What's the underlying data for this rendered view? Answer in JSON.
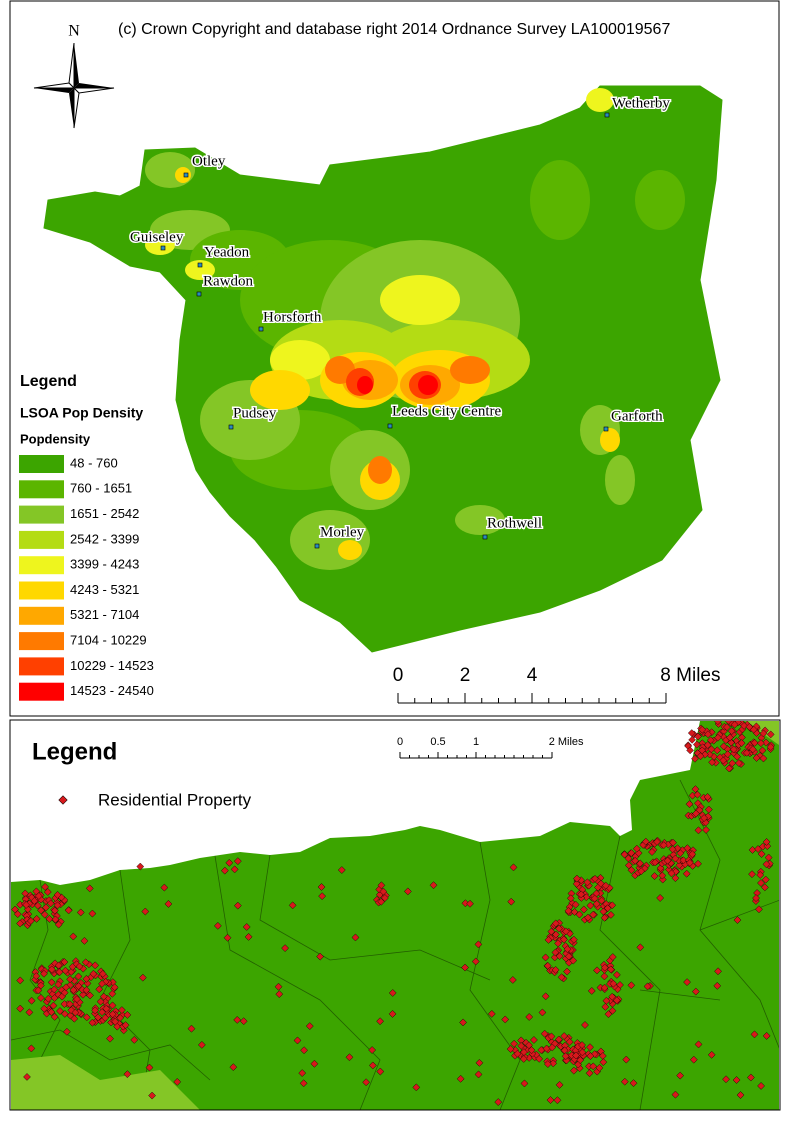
{
  "top_map": {
    "copyright": "(c) Crown Copyright and database right 2014 Ordnance Survey LA100019567",
    "north": "N",
    "places": [
      "Wetherby",
      "Otley",
      "Guiseley",
      "Yeadon",
      "Rawdon",
      "Horsforth",
      "Pudsey",
      "Leeds City Centre",
      "Garforth",
      "Rothwell",
      "Morley"
    ],
    "legend": {
      "title": "Legend",
      "layer": "LSOA Pop Density",
      "field": "Popdensity",
      "classes": [
        {
          "label": "48 - 760",
          "color": "#3ca500"
        },
        {
          "label": "760 - 1651",
          "color": "#5bb500"
        },
        {
          "label": "1651 - 2542",
          "color": "#84c626"
        },
        {
          "label": "2542 - 3399",
          "color": "#b4dc14"
        },
        {
          "label": "3399 - 4243",
          "color": "#eef51e"
        },
        {
          "label": "4243 - 5321",
          "color": "#ffd800"
        },
        {
          "label": "5321 - 7104",
          "color": "#ffa800"
        },
        {
          "label": "7104 - 10229",
          "color": "#ff7a00"
        },
        {
          "label": "10229 - 14523",
          "color": "#ff4000"
        },
        {
          "label": "14523 - 24540",
          "color": "#ff0000"
        }
      ]
    },
    "scale": {
      "ticks": [
        0,
        2,
        4,
        {
          "value": 8,
          "label": "8 Miles"
        }
      ]
    }
  },
  "bottom_map": {
    "legend": {
      "title": "Legend",
      "item": "Residential Property",
      "color": "#d7191c"
    },
    "scale": {
      "ticks": [
        0,
        0.5,
        1,
        {
          "value": 2,
          "label": "2 Miles"
        }
      ]
    }
  }
}
